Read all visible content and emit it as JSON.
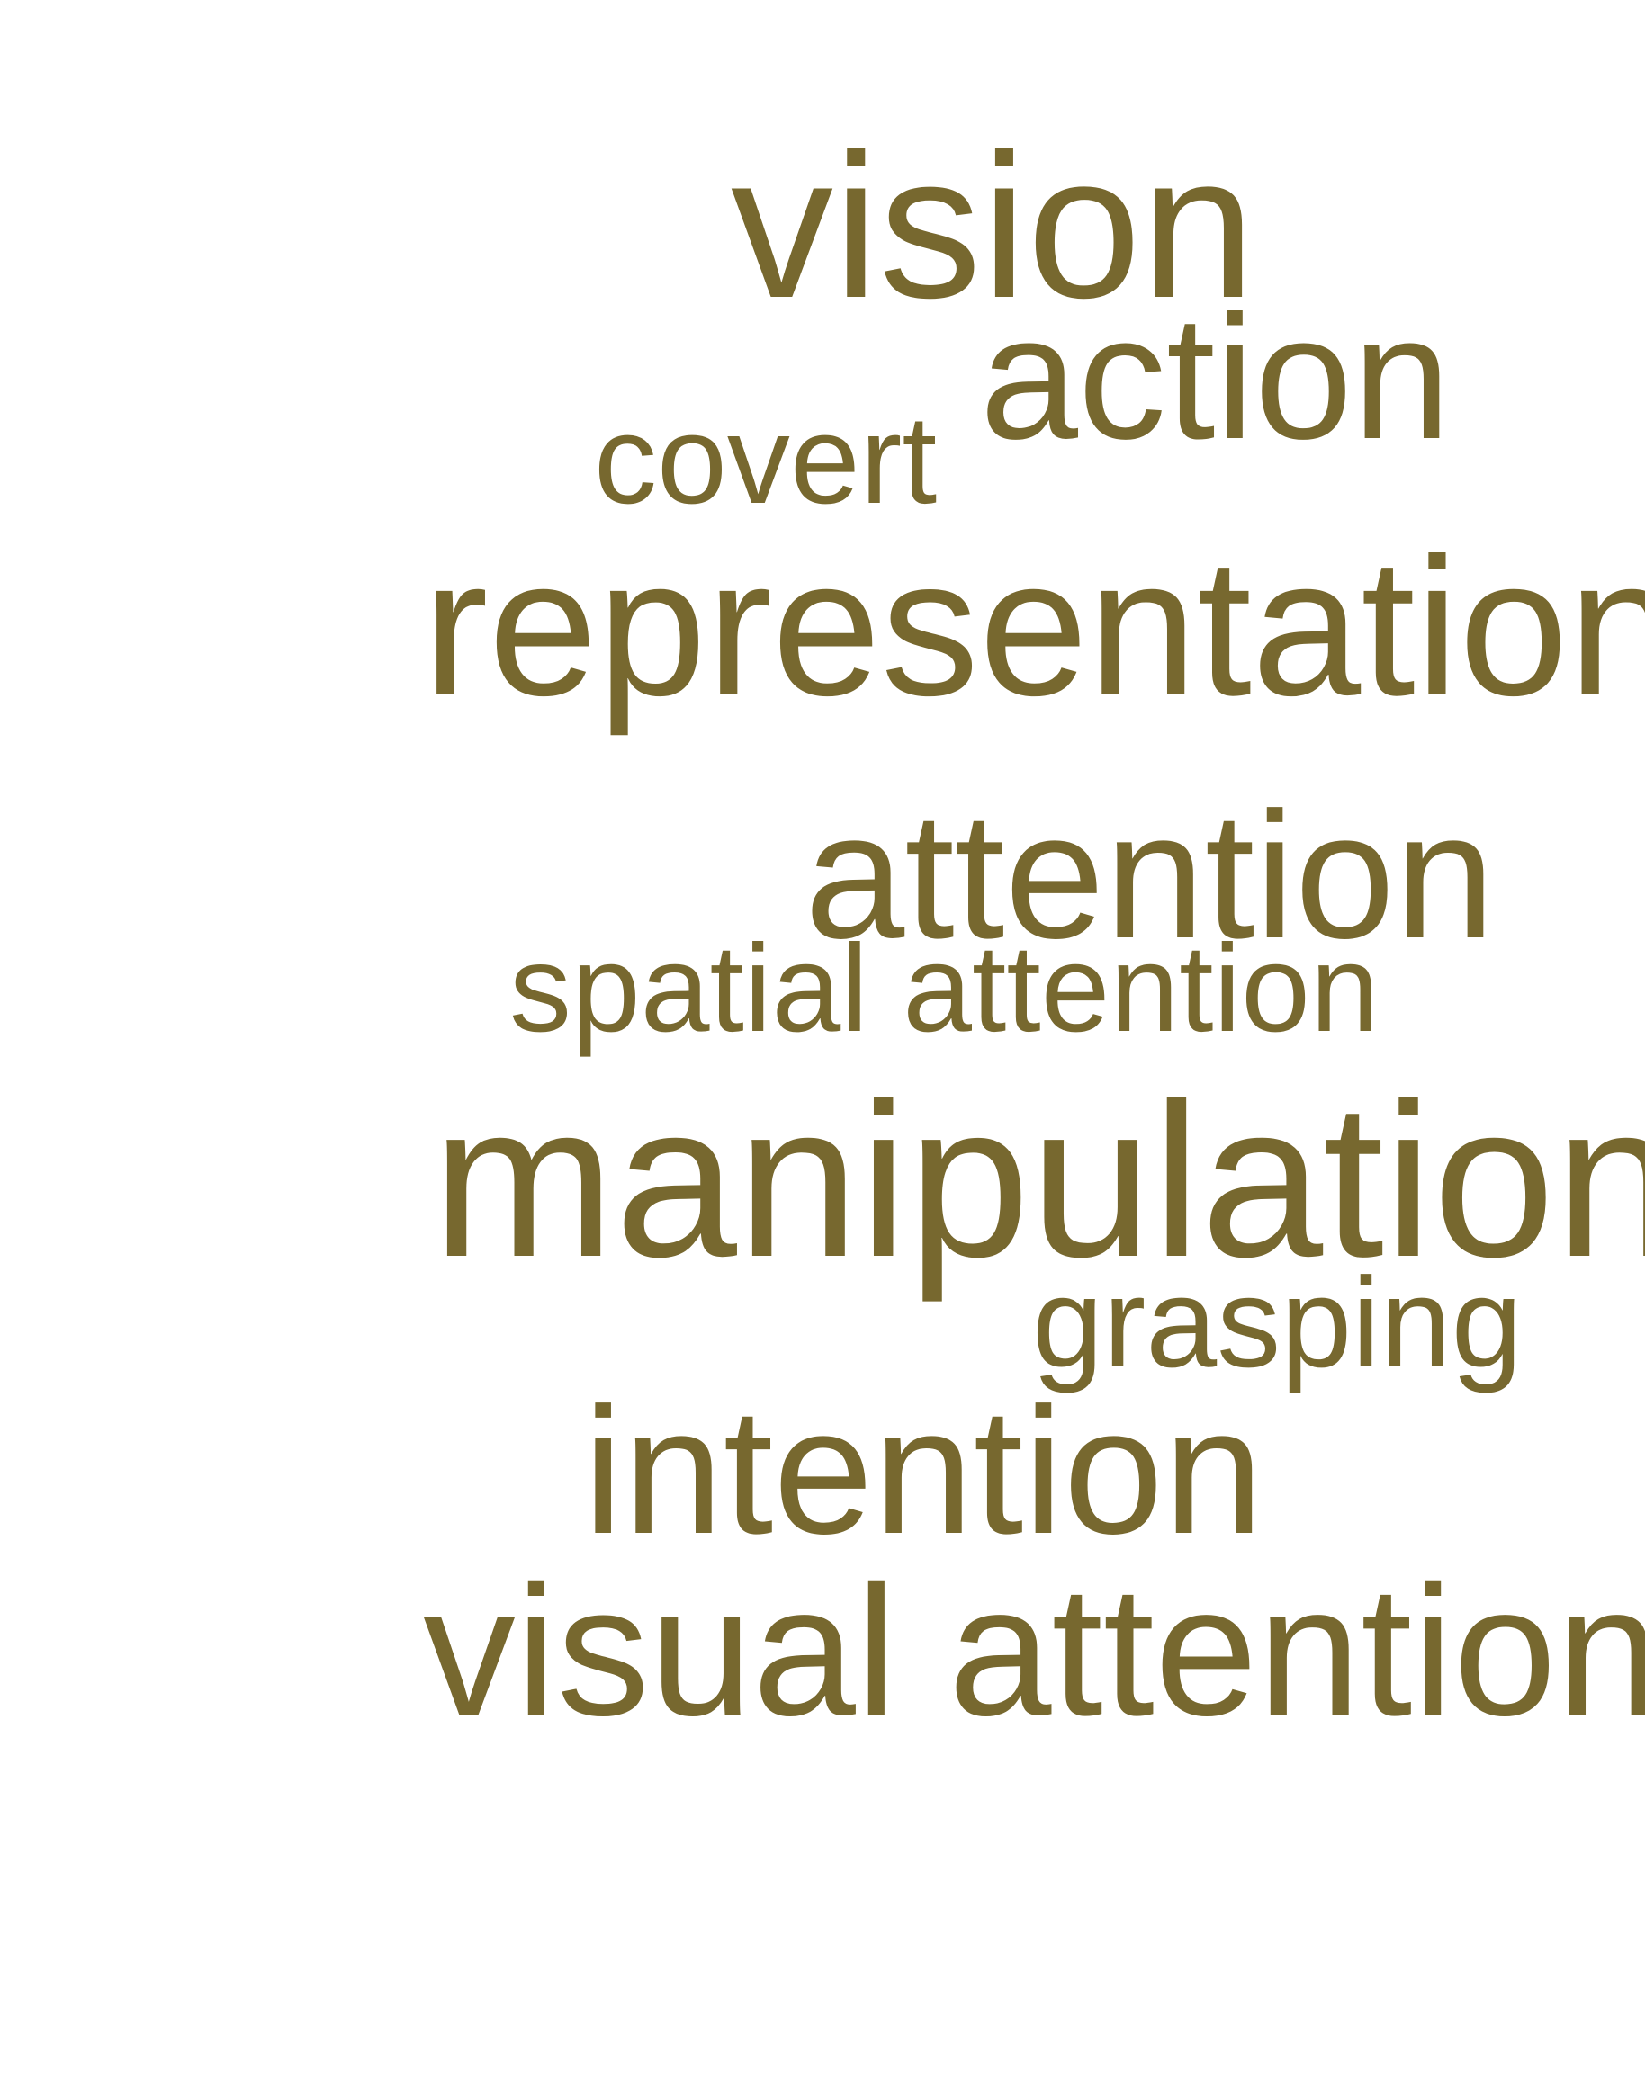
{
  "word_cloud": {
    "text_color": "#77682f",
    "background": "#ffffff",
    "words": [
      {
        "id": "vision",
        "text": "vision"
      },
      {
        "id": "action",
        "text": "action"
      },
      {
        "id": "covert",
        "text": "covert"
      },
      {
        "id": "representation",
        "text": "representation"
      },
      {
        "id": "attention",
        "text": "attention"
      },
      {
        "id": "spatial-attention",
        "text": "spatial attention"
      },
      {
        "id": "manipulation",
        "text": "manipulation"
      },
      {
        "id": "grasping",
        "text": "grasping"
      },
      {
        "id": "intention",
        "text": "intention"
      },
      {
        "id": "visual-attention",
        "text": "visual attention"
      }
    ]
  }
}
